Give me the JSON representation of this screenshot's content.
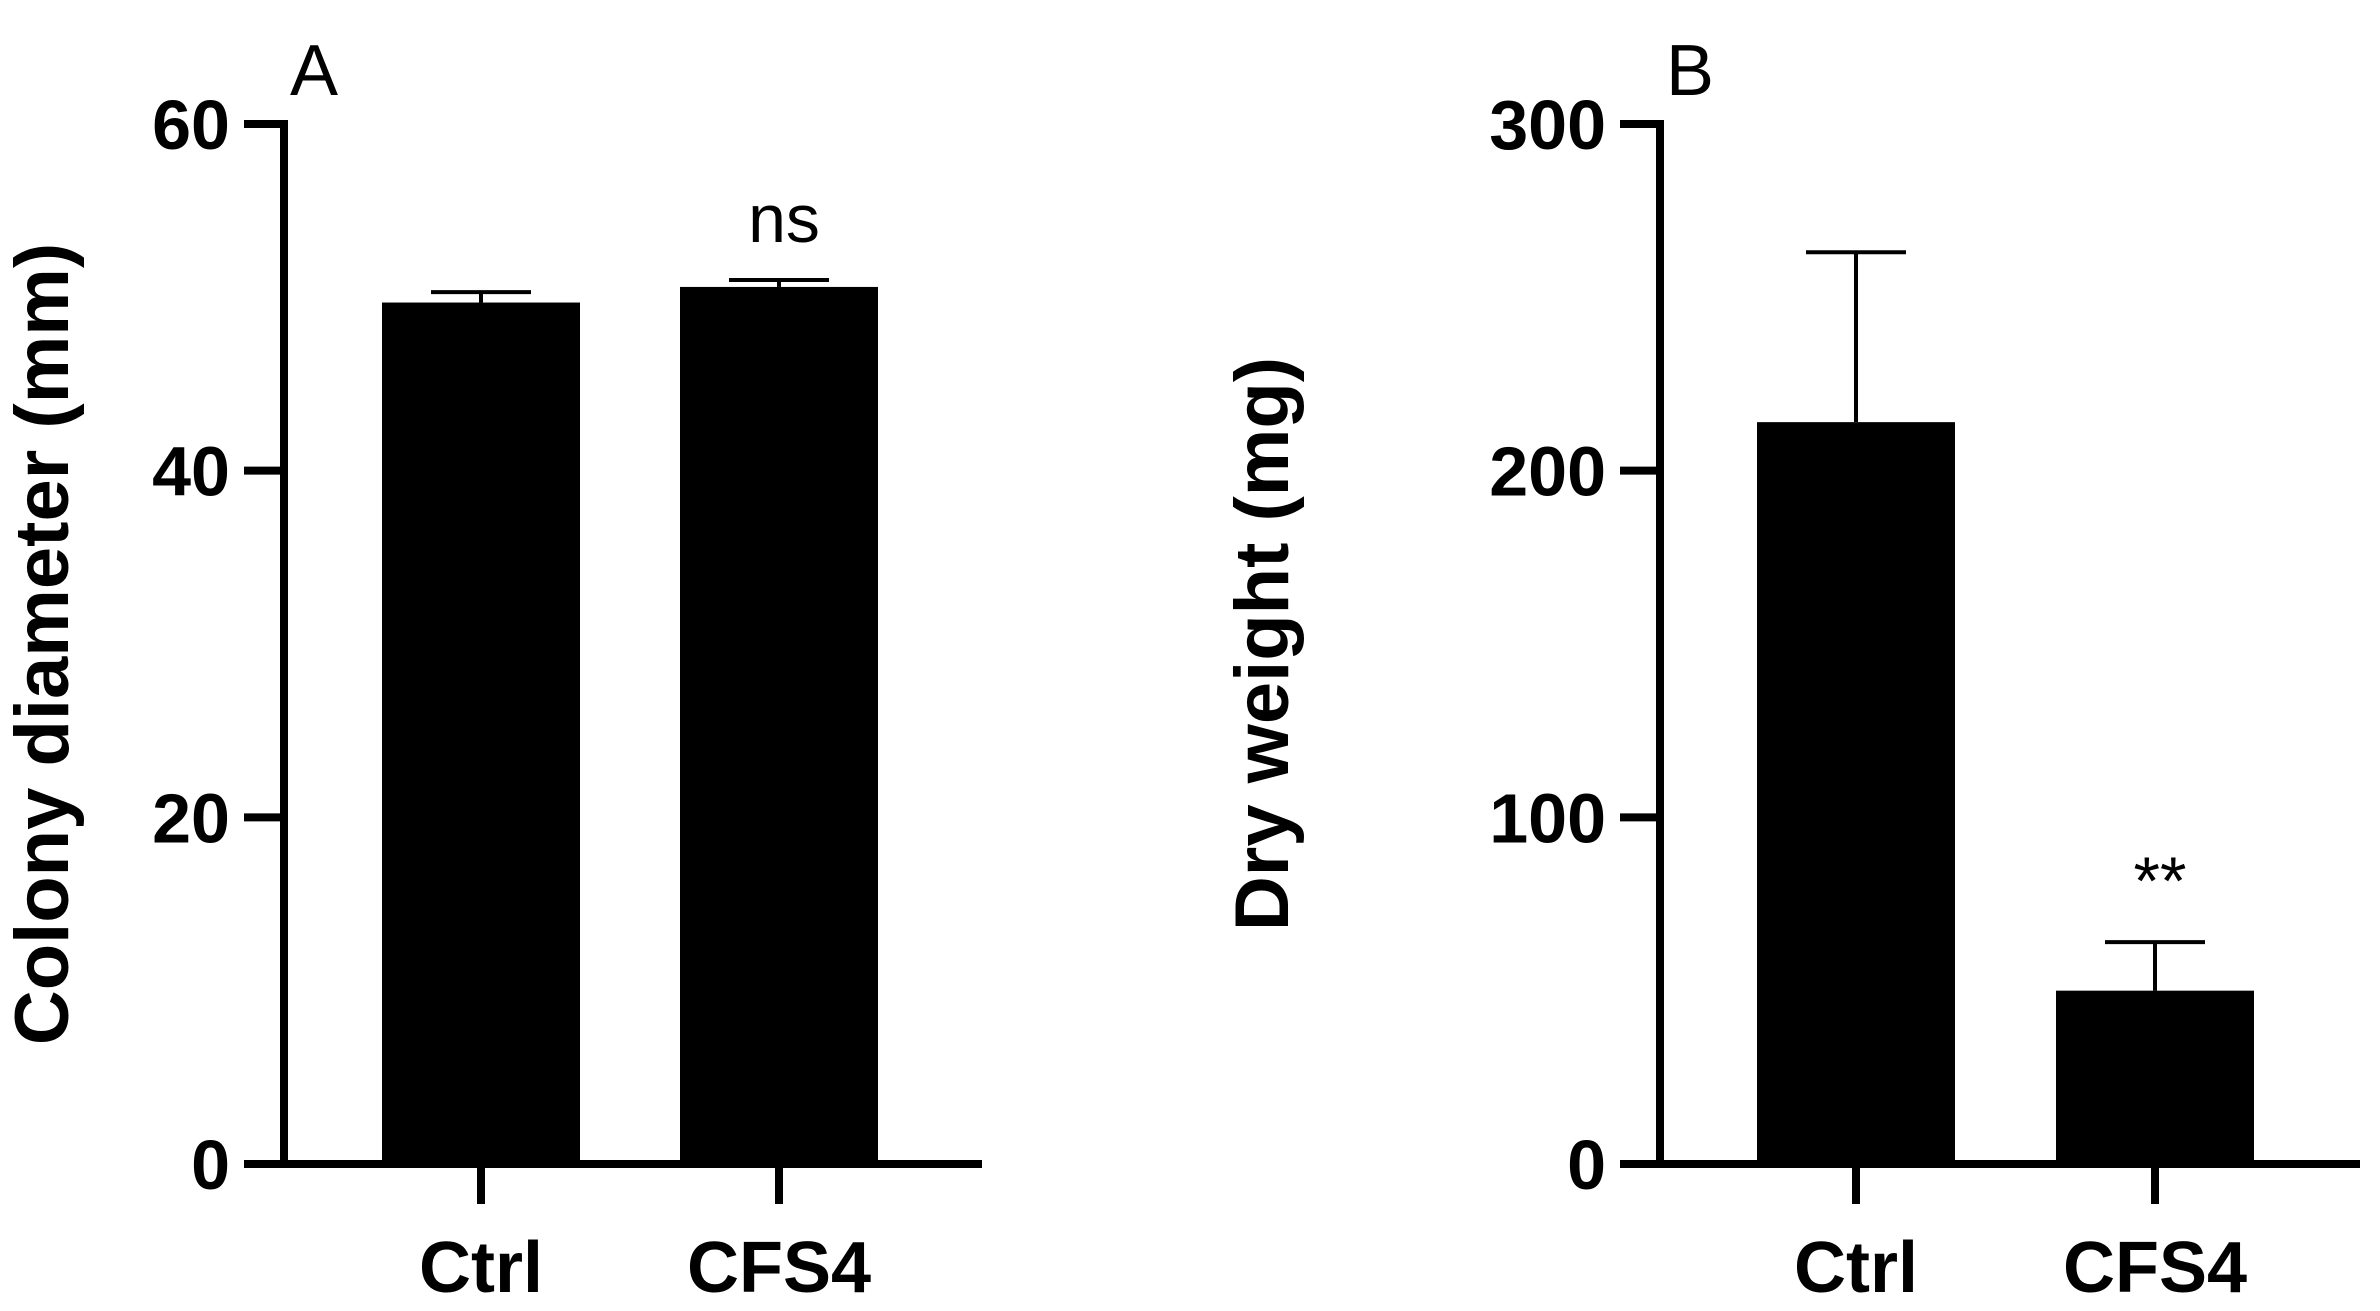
{
  "chart_data": [
    {
      "type": "bar",
      "panel_label": "A",
      "ylabel": "Colony diameter (mm)",
      "xlabel": "",
      "ylim": [
        0,
        60
      ],
      "yticks": [
        0,
        20,
        40,
        60
      ],
      "categories": [
        "Ctrl",
        "CFS4"
      ],
      "values": [
        49.7,
        50.6
      ],
      "errors": [
        0.6,
        0.4
      ],
      "annotations": [
        "",
        "ns"
      ],
      "grid": false,
      "bar_color": "#000000"
    },
    {
      "type": "bar",
      "panel_label": "B",
      "ylabel": "Dry weight (mg)",
      "xlabel": "",
      "ylim": [
        0,
        300
      ],
      "yticks": [
        0,
        100,
        200,
        300
      ],
      "categories": [
        "Ctrl",
        "CFS4"
      ],
      "values": [
        214,
        50
      ],
      "errors": [
        49,
        14
      ],
      "annotations": [
        "",
        "**"
      ],
      "grid": false,
      "bar_color": "#000000"
    }
  ]
}
